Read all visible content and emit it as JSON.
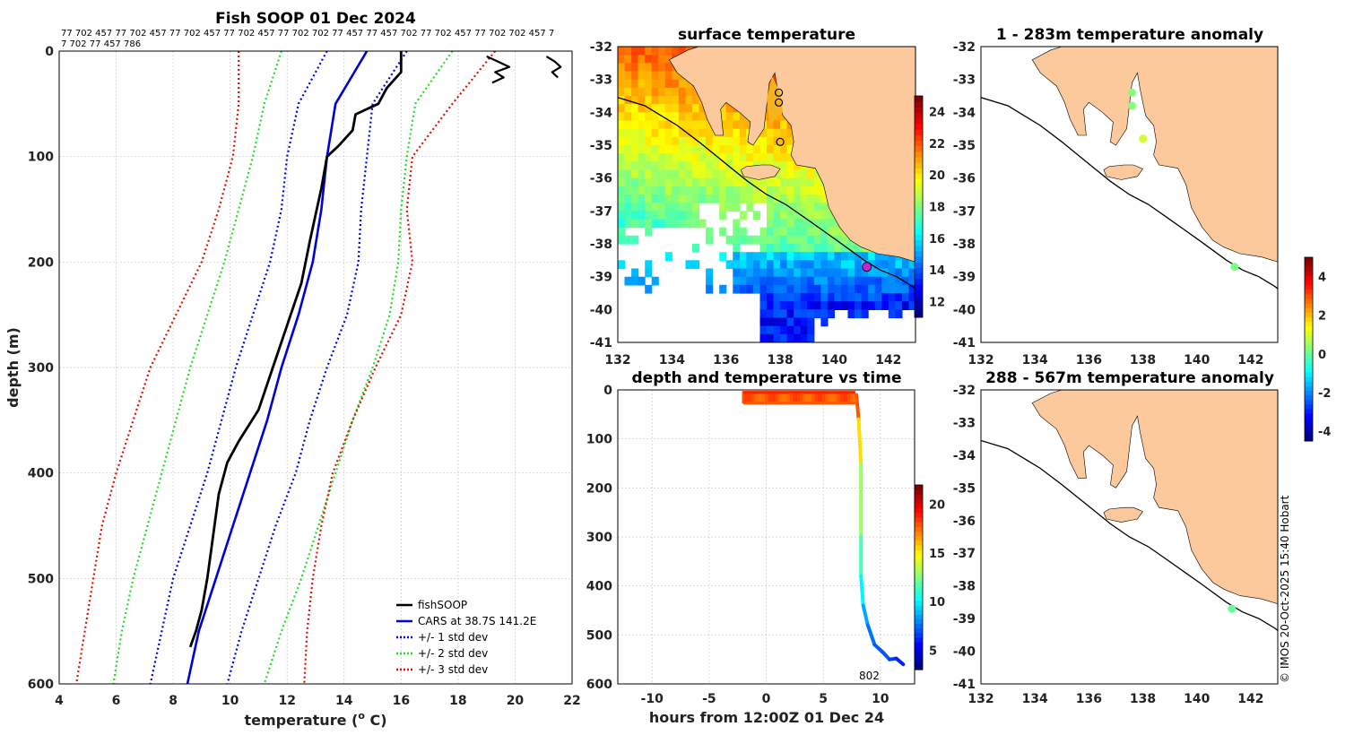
{
  "copyright": "© IMOS 20-Oct-2025 15:40 Hobart",
  "colors": {
    "land": "#fbc99b",
    "fish": "#000000",
    "cars": "#0000dd",
    "sd1": "#0000dd",
    "sd2": "#22dd22",
    "sd3": "#dd1100"
  },
  "chart_data": [
    {
      "id": "profile",
      "type": "line",
      "title": "Fish SOOP 01 Dec 2024",
      "header_line1": "77 702 457 77 702 457 77 702 457 77 702 457 77 702 702 77 457 77 457 702 77 702 457 77 702 702 457 7",
      "header_line2": "7 702 77 457 786",
      "xlabel": "temperature (",
      "xlabel_sup": "o",
      "xlabel_end": " C)",
      "ylabel": "depth (m)",
      "xlim": [
        4,
        22
      ],
      "ylim": [
        600,
        0
      ],
      "xticks": [
        "4",
        "6",
        "8",
        "10",
        "12",
        "14",
        "16",
        "18",
        "20",
        "22"
      ],
      "yticks": [
        "0",
        "100",
        "200",
        "300",
        "400",
        "500",
        "600"
      ],
      "legend": [
        "fishSOOP",
        "CARS at 38.7S 141.2E",
        "+/- 1 std dev",
        "+/- 2 std dev",
        "+/- 3 std dev"
      ],
      "series": [
        {
          "name": "CARS mean",
          "depth": [
            0,
            50,
            100,
            150,
            200,
            250,
            300,
            350,
            400,
            450,
            500,
            550,
            600
          ],
          "temp": [
            14.8,
            13.7,
            13.4,
            13.2,
            12.9,
            12.4,
            11.8,
            11.3,
            10.7,
            10.1,
            9.5,
            8.9,
            8.5
          ]
        },
        {
          "name": "+1 sd",
          "depth": [
            0,
            50,
            100,
            150,
            200,
            250,
            300,
            350,
            400,
            450,
            500,
            550,
            600
          ],
          "temp": [
            16.2,
            15.0,
            14.8,
            14.6,
            14.5,
            14.1,
            13.4,
            12.8,
            12.3,
            11.6,
            11.0,
            10.4,
            9.9
          ]
        },
        {
          "name": "-1 sd",
          "depth": [
            0,
            50,
            100,
            150,
            200,
            250,
            300,
            350,
            400,
            450,
            500,
            550,
            600
          ],
          "temp": [
            13.4,
            12.4,
            12.0,
            11.8,
            11.4,
            10.8,
            10.2,
            9.7,
            9.2,
            8.6,
            8.0,
            7.6,
            7.2
          ]
        },
        {
          "name": "+2 sd",
          "depth": [
            0,
            50,
            100,
            150,
            200,
            250,
            300,
            350,
            400,
            450,
            500,
            550,
            600
          ],
          "temp": [
            17.8,
            16.5,
            16.2,
            16.0,
            15.9,
            15.6,
            15.0,
            14.3,
            13.7,
            13.1,
            12.5,
            11.8,
            11.2
          ]
        },
        {
          "name": "-2 sd",
          "depth": [
            0,
            50,
            100,
            150,
            200,
            250,
            300,
            350,
            400,
            450,
            500,
            550,
            600
          ],
          "temp": [
            11.8,
            11.2,
            10.8,
            10.3,
            9.8,
            9.2,
            8.6,
            8.1,
            7.6,
            7.1,
            6.6,
            6.2,
            5.9
          ]
        },
        {
          "name": "+3 sd",
          "depth": [
            0,
            50,
            100,
            150,
            200,
            250,
            300,
            350,
            400,
            450,
            500,
            550,
            600
          ],
          "temp": [
            19.3,
            17.8,
            16.4,
            16.2,
            16.4,
            16.0,
            15.1,
            14.3,
            13.6,
            13.2,
            12.9,
            12.7,
            12.6
          ]
        },
        {
          "name": "-3 sd",
          "depth": [
            0,
            50,
            100,
            150,
            200,
            250,
            300,
            350,
            400,
            450,
            500,
            550,
            600
          ],
          "temp": [
            10.3,
            10.3,
            10.1,
            9.6,
            9.0,
            8.1,
            7.2,
            6.6,
            6.0,
            5.5,
            5.2,
            4.9,
            4.6
          ]
        },
        {
          "name": "fishSOOP",
          "depth": [
            0,
            20,
            35,
            50,
            60,
            75,
            90,
            100,
            130,
            180,
            220,
            260,
            300,
            340,
            370,
            390,
            420,
            460,
            500,
            530,
            550,
            565
          ],
          "temp": [
            16.0,
            16.0,
            15.5,
            15.2,
            14.4,
            14.3,
            13.8,
            13.4,
            13.2,
            12.8,
            12.5,
            12.0,
            11.5,
            11.0,
            10.3,
            9.9,
            9.6,
            9.4,
            9.2,
            9.0,
            8.8,
            8.6
          ]
        },
        {
          "name": "surface scatter A",
          "depth": [
            5,
            10,
            15,
            20,
            25,
            30
          ],
          "temp": [
            19.0,
            19.4,
            19.8,
            19.3,
            19.6,
            19.2
          ]
        },
        {
          "name": "surface scatter B",
          "depth": [
            5,
            10,
            15,
            20,
            25
          ],
          "temp": [
            21.1,
            21.4,
            21.6,
            21.3,
            21.5
          ]
        }
      ]
    },
    {
      "id": "sst",
      "type": "heatmap",
      "title": "surface temperature",
      "xlim": [
        132,
        143
      ],
      "ylim": [
        -41,
        -32
      ],
      "xticks": [
        "132",
        "134",
        "136",
        "138",
        "140",
        "142"
      ],
      "yticks": [
        "-32",
        "-33",
        "-34",
        "-35",
        "-36",
        "-37",
        "-38",
        "-39",
        "-40",
        "-41"
      ],
      "cbar_ticks": [
        "12",
        "14",
        "16",
        "18",
        "20",
        "22",
        "24"
      ],
      "crange": [
        11,
        25
      ]
    },
    {
      "id": "timeseries",
      "type": "line",
      "title": "depth and temperature vs time",
      "xlabel": "hours from 12:00Z 01 Dec 24",
      "xlim": [
        -13,
        13
      ],
      "ylim": [
        600,
        0
      ],
      "xticks": [
        "-10",
        "-5",
        "0",
        "5",
        "10"
      ],
      "yticks": [
        "0",
        "100",
        "200",
        "300",
        "400",
        "500",
        "600"
      ],
      "cbar_ticks": [
        "5",
        "10",
        "15",
        "20"
      ],
      "crange": [
        3,
        22
      ],
      "annotation": "802",
      "track": [
        {
          "h": 7.9,
          "d": 10,
          "t": 19
        },
        {
          "h": 8.1,
          "d": 60,
          "t": 17
        },
        {
          "h": 8.3,
          "d": 150,
          "t": 14
        },
        {
          "h": 8.3,
          "d": 300,
          "t": 12
        },
        {
          "h": 8.3,
          "d": 380,
          "t": 11
        },
        {
          "h": 8.5,
          "d": 440,
          "t": 9
        },
        {
          "h": 8.9,
          "d": 480,
          "t": 8
        },
        {
          "h": 9.5,
          "d": 520,
          "t": 7
        },
        {
          "h": 10.2,
          "d": 535,
          "t": 7
        },
        {
          "h": 10.8,
          "d": 550,
          "t": 7
        },
        {
          "h": 11.4,
          "d": 548,
          "t": 6
        },
        {
          "h": 12.0,
          "d": 560,
          "t": 6
        }
      ]
    },
    {
      "id": "anomaly_upper",
      "type": "scatter",
      "title": "1 - 283m temperature anomaly",
      "xlim": [
        132,
        143
      ],
      "ylim": [
        -41,
        -32
      ],
      "xticks": [
        "132",
        "134",
        "136",
        "138",
        "140",
        "142"
      ],
      "yticks": [
        "-32",
        "-33",
        "-34",
        "-35",
        "-36",
        "-37",
        "-38",
        "-39",
        "-40",
        "-41"
      ],
      "cbar_ticks": [
        "-4",
        "-2",
        "0",
        "2",
        "4"
      ],
      "crange": [
        -4.5,
        5
      ],
      "points": [
        {
          "lon": 137.6,
          "lat": -33.4,
          "v": 0.3
        },
        {
          "lon": 137.6,
          "lat": -33.8,
          "v": 0.3
        },
        {
          "lon": 138.0,
          "lat": -34.8,
          "v": 1.0
        },
        {
          "lon": 141.4,
          "lat": -38.7,
          "v": 0.2
        }
      ]
    },
    {
      "id": "anomaly_lower",
      "type": "scatter",
      "title": "288 - 567m temperature anomaly",
      "xlim": [
        132,
        143
      ],
      "ylim": [
        -41,
        -32
      ],
      "xticks": [
        "132",
        "134",
        "136",
        "138",
        "140",
        "142"
      ],
      "yticks": [
        "-32",
        "-33",
        "-34",
        "-35",
        "-36",
        "-37",
        "-38",
        "-39",
        "-40",
        "-41"
      ],
      "points": [
        {
          "lon": 141.3,
          "lat": -38.7,
          "v": 0.0
        }
      ]
    }
  ]
}
